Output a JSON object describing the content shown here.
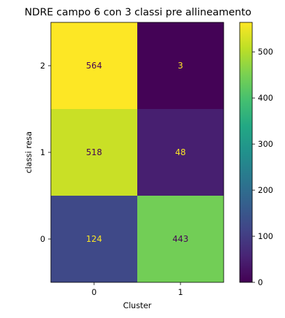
{
  "chart_data": {
    "type": "heatmap",
    "title": "NDRE campo 6 con 3 classi pre allineamento",
    "xlabel": "Cluster",
    "ylabel": "classi resa",
    "x_categories": [
      "0",
      "1"
    ],
    "y_categories_top_to_bottom": [
      "2",
      "1",
      "0"
    ],
    "matrix_top_to_bottom": [
      [
        564,
        3
      ],
      [
        518,
        48
      ],
      [
        124,
        443
      ]
    ],
    "colormap": "viridis",
    "colorbar": {
      "min": 0,
      "max": 564,
      "ticks": [
        "0",
        "100",
        "200",
        "300",
        "400",
        "500"
      ]
    }
  }
}
